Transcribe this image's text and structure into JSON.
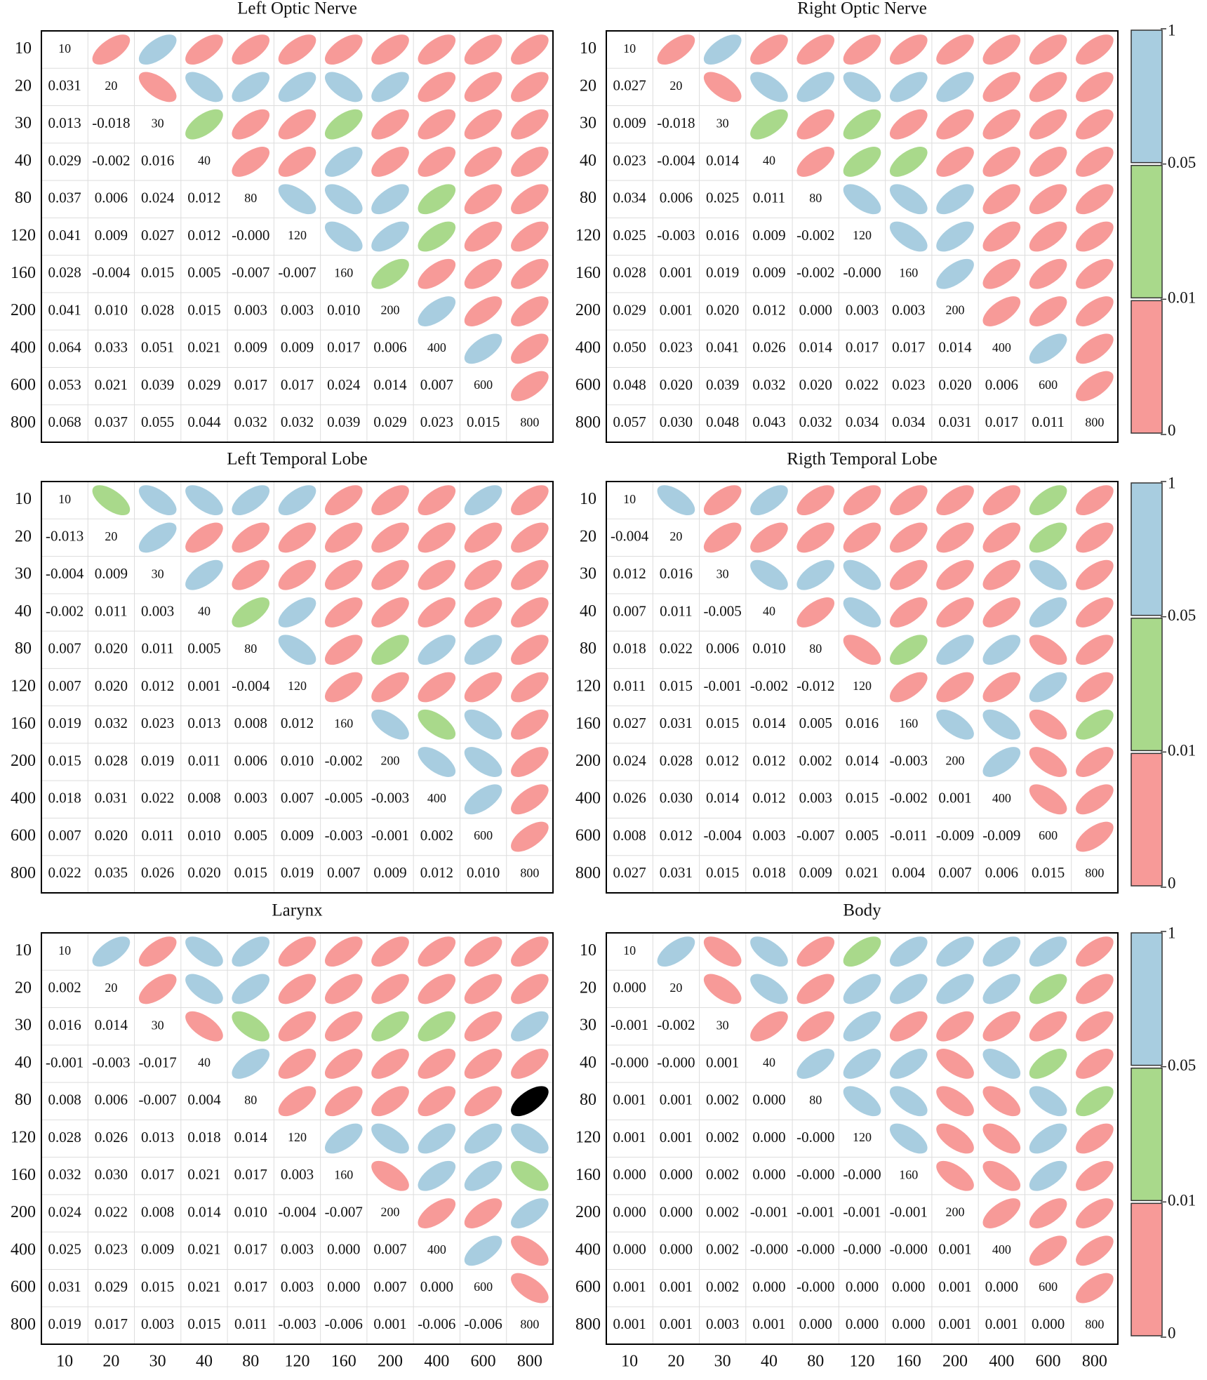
{
  "chart_data": [
    {
      "type": "ellipse-matrix",
      "title": "Left Optic Nerve",
      "labels": [
        10,
        20,
        30,
        40,
        80,
        120,
        160,
        200,
        400,
        600,
        800
      ],
      "lower": [
        [
          "0.031"
        ],
        [
          "0.013",
          "-0.018"
        ],
        [
          "0.029",
          "-0.002",
          "0.016"
        ],
        [
          "0.037",
          "0.006",
          "0.024",
          "0.012"
        ],
        [
          "0.041",
          "0.009",
          "0.027",
          "0.012",
          "-0.000"
        ],
        [
          "0.028",
          "-0.004",
          "0.015",
          "0.005",
          "-0.007",
          "-0.007"
        ],
        [
          "0.041",
          "0.010",
          "0.028",
          "0.015",
          "0.003",
          "0.003",
          "0.010"
        ],
        [
          "0.064",
          "0.033",
          "0.051",
          "0.021",
          "0.009",
          "0.009",
          "0.017",
          "0.006"
        ],
        [
          "0.053",
          "0.021",
          "0.039",
          "0.029",
          "0.017",
          "0.017",
          "0.024",
          "0.014",
          "0.007"
        ],
        [
          "0.068",
          "0.037",
          "0.055",
          "0.044",
          "0.032",
          "0.032",
          "0.039",
          "0.029",
          "0.023",
          "0.015"
        ]
      ],
      "upper": [
        "rbrrrrrrrr",
        "rbbbbbrrr",
        "grrgrrrr",
        "rrbrrrr",
        "bbbgrr",
        "bbgrr",
        "grrr",
        "brr",
        "br",
        "r"
      ]
    },
    {
      "type": "ellipse-matrix",
      "title": "Right Optic Nerve",
      "labels": [
        10,
        20,
        30,
        40,
        80,
        120,
        160,
        200,
        400,
        600,
        800
      ],
      "lower": [
        [
          "0.027"
        ],
        [
          "0.009",
          "-0.018"
        ],
        [
          "0.023",
          "-0.004",
          "0.014"
        ],
        [
          "0.034",
          "0.006",
          "0.025",
          "0.011"
        ],
        [
          "0.025",
          "-0.003",
          "0.016",
          "0.009",
          "-0.002"
        ],
        [
          "0.028",
          "0.001",
          "0.019",
          "0.009",
          "-0.002",
          "-0.000"
        ],
        [
          "0.029",
          "0.001",
          "0.020",
          "0.012",
          "0.000",
          "0.003",
          "0.003"
        ],
        [
          "0.050",
          "0.023",
          "0.041",
          "0.026",
          "0.014",
          "0.017",
          "0.017",
          "0.014"
        ],
        [
          "0.048",
          "0.020",
          "0.039",
          "0.032",
          "0.020",
          "0.022",
          "0.023",
          "0.020",
          "0.006"
        ],
        [
          "0.057",
          "0.030",
          "0.048",
          "0.043",
          "0.032",
          "0.034",
          "0.034",
          "0.031",
          "0.017",
          "0.011"
        ]
      ],
      "upper": [
        "rbrrrrrrrr",
        "rbbbbbrrr",
        "grgrrrrr",
        "rggrrrr",
        "bbbrrr",
        "bbrrr",
        "brrr",
        "rrr",
        "br",
        "r"
      ]
    },
    {
      "type": "ellipse-matrix",
      "title": "Left Temporal Lobe",
      "labels": [
        10,
        20,
        30,
        40,
        80,
        120,
        160,
        200,
        400,
        600,
        800
      ],
      "lower": [
        [
          "-0.013"
        ],
        [
          "-0.004",
          "0.009"
        ],
        [
          "-0.002",
          "0.011",
          "0.003"
        ],
        [
          "0.007",
          "0.020",
          "0.011",
          "0.005"
        ],
        [
          "0.007",
          "0.020",
          "0.012",
          "0.001",
          "-0.004"
        ],
        [
          "0.019",
          "0.032",
          "0.023",
          "0.013",
          "0.008",
          "0.012"
        ],
        [
          "0.015",
          "0.028",
          "0.019",
          "0.011",
          "0.006",
          "0.010",
          "-0.002"
        ],
        [
          "0.018",
          "0.031",
          "0.022",
          "0.008",
          "0.003",
          "0.007",
          "-0.005",
          "-0.003"
        ],
        [
          "0.007",
          "0.020",
          "0.011",
          "0.010",
          "0.005",
          "0.009",
          "-0.003",
          "-0.001",
          "0.002"
        ],
        [
          "0.022",
          "0.035",
          "0.026",
          "0.020",
          "0.015",
          "0.019",
          "0.007",
          "0.009",
          "0.012",
          "0.010"
        ]
      ],
      "upper": [
        "gbbbbrrrbr",
        "brrrrrrrr",
        "brrrrrrr",
        "gbrrrrr",
        "brgbbr",
        "rrrrr",
        "bgbr",
        "bbr",
        "br",
        "r"
      ]
    },
    {
      "type": "ellipse-matrix",
      "title": "Rigth Temporal Lobe",
      "labels": [
        10,
        20,
        30,
        40,
        80,
        120,
        160,
        200,
        400,
        600,
        800
      ],
      "lower": [
        [
          "-0.004"
        ],
        [
          "0.012",
          "0.016"
        ],
        [
          "0.007",
          "0.011",
          "-0.005"
        ],
        [
          "0.018",
          "0.022",
          "0.006",
          "0.010"
        ],
        [
          "0.011",
          "0.015",
          "-0.001",
          "-0.002",
          "-0.012"
        ],
        [
          "0.027",
          "0.031",
          "0.015",
          "0.014",
          "0.005",
          "0.016"
        ],
        [
          "0.024",
          "0.028",
          "0.012",
          "0.012",
          "0.002",
          "0.014",
          "-0.003"
        ],
        [
          "0.026",
          "0.030",
          "0.014",
          "0.012",
          "0.003",
          "0.015",
          "-0.002",
          "0.001"
        ],
        [
          "0.008",
          "0.012",
          "-0.004",
          "0.003",
          "-0.007",
          "0.005",
          "-0.011",
          "-0.009",
          "-0.009"
        ],
        [
          "0.027",
          "0.031",
          "0.015",
          "0.018",
          "0.009",
          "0.021",
          "0.004",
          "0.007",
          "0.006",
          "0.015"
        ]
      ],
      "upper": [
        "brbrrrrrgr",
        "rrrrrrrgr",
        "bbbrrrbr",
        "rbrrrbr",
        "rgbbrr",
        "rrrbr",
        "bbrg",
        "brr",
        "rr",
        "r"
      ]
    },
    {
      "type": "ellipse-matrix",
      "title": "Larynx",
      "labels": [
        10,
        20,
        30,
        40,
        80,
        120,
        160,
        200,
        400,
        600,
        800
      ],
      "lower": [
        [
          "0.002"
        ],
        [
          "0.016",
          "0.014"
        ],
        [
          "-0.001",
          "-0.003",
          "-0.017"
        ],
        [
          "0.008",
          "0.006",
          "-0.007",
          "0.004"
        ],
        [
          "0.028",
          "0.026",
          "0.013",
          "0.018",
          "0.014"
        ],
        [
          "0.032",
          "0.030",
          "0.017",
          "0.021",
          "0.017",
          "0.003"
        ],
        [
          "0.024",
          "0.022",
          "0.008",
          "0.014",
          "0.010",
          "-0.004",
          "-0.007"
        ],
        [
          "0.025",
          "0.023",
          "0.009",
          "0.021",
          "0.017",
          "0.003",
          "0.000",
          "0.007"
        ],
        [
          "0.031",
          "0.029",
          "0.015",
          "0.021",
          "0.017",
          "0.003",
          "0.000",
          "0.007",
          "0.000"
        ],
        [
          "0.019",
          "0.017",
          "0.003",
          "0.015",
          "0.011",
          "-0.003",
          "-0.006",
          "0.001",
          "-0.006",
          "-0.006"
        ]
      ],
      "upper": [
        "brbbrrrrrr",
        "rbbrrrrrr",
        "rgrrggrb",
        "brrrrrr",
        "rrrrr",
        "bbbbb",
        "rbbg",
        "rrb",
        "br",
        "r"
      ]
    },
    {
      "type": "ellipse-matrix",
      "title": "Body",
      "labels": [
        10,
        20,
        30,
        40,
        80,
        120,
        160,
        200,
        400,
        600,
        800
      ],
      "lower": [
        [
          "0.000"
        ],
        [
          "-0.001",
          "-0.002"
        ],
        [
          "-0.000",
          "-0.000",
          "0.001"
        ],
        [
          "0.001",
          "0.001",
          "0.002",
          "0.000"
        ],
        [
          "0.001",
          "0.001",
          "0.002",
          "0.000",
          "-0.000"
        ],
        [
          "0.000",
          "0.000",
          "0.002",
          "0.000",
          "-0.000",
          "-0.000"
        ],
        [
          "0.000",
          "0.000",
          "0.002",
          "-0.001",
          "-0.001",
          "-0.001",
          "-0.001"
        ],
        [
          "0.000",
          "0.000",
          "0.002",
          "-0.000",
          "-0.000",
          "-0.000",
          "-0.000",
          "0.001"
        ],
        [
          "0.001",
          "0.001",
          "0.002",
          "0.000",
          "-0.000",
          "0.000",
          "0.000",
          "0.001",
          "0.000"
        ],
        [
          "0.001",
          "0.001",
          "0.003",
          "0.001",
          "0.000",
          "0.000",
          "0.000",
          "0.001",
          "0.001",
          "0.000"
        ]
      ],
      "upper": [
        "brbrgbbbbr",
        "rbrbbbbgr",
        "rrbrrrrr",
        "bbbrbgr",
        "bbrrbg",
        "brrbr",
        "rrbr",
        "rrr",
        "rr",
        "r"
      ]
    }
  ],
  "palette": {
    "r": "#f79a98",
    "b": "#a8cde0",
    "g": "#a9d98b"
  },
  "colorbar": {
    "ticks": [
      1,
      0.05,
      0.01,
      0
    ],
    "colors": [
      "b",
      "g",
      "r"
    ]
  }
}
